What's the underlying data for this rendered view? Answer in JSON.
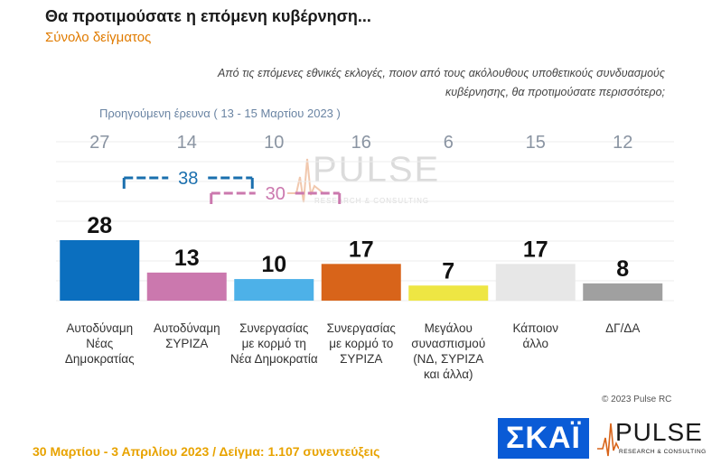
{
  "header": {
    "title": "Θα προτιμούσατε η επόμενη κυβέρνηση...",
    "subtitle": "Σύνολο δείγματος"
  },
  "question": {
    "line1": "Από τις επόμενες εθνικές εκλογές, ποιον από τους ακόλουθους υποθετικούς συνδυασμούς",
    "line2": "κυβέρνησης, θα προτιμούσατε περισσότερο;"
  },
  "previous_survey_label": "Προηγούμενη έρευνα  ( 13 - 15 Μαρτίου  2023 )",
  "chart_data": {
    "type": "bar",
    "categories": [
      [
        "Αυτοδύναμη",
        "Νέας",
        "Δημοκρατίας"
      ],
      [
        "Αυτοδύναμη",
        "ΣΥΡΙΖΑ"
      ],
      [
        "Συνεργασίας",
        "με κορμό τη",
        "Νέα Δημοκρατία"
      ],
      [
        "Συνεργασίας",
        "με κορμό το",
        "ΣΥΡΙΖΑ"
      ],
      [
        "Μεγάλου",
        "συνασπισμού",
        "(ΝΔ, ΣΥΡΙΖΑ",
        "και άλλα)"
      ],
      [
        "Κάποιον",
        "άλλο"
      ],
      [
        "ΔΓ/ΔΑ"
      ]
    ],
    "values": [
      28,
      13,
      10,
      17,
      7,
      17,
      8
    ],
    "previous_values": [
      27,
      14,
      10,
      16,
      6,
      15,
      12
    ],
    "colors": [
      "#0b6fbf",
      "#cb78ae",
      "#4db1e8",
      "#d8641a",
      "#eee643",
      "#e7e7e7",
      "#a0a0a0"
    ],
    "brackets": [
      {
        "label": "38",
        "from": 0,
        "to": 2,
        "color": "#1a6fae"
      },
      {
        "label": "30",
        "from": 1,
        "to": 3,
        "color": "#cb78ae"
      }
    ],
    "ylim": [
      0,
      30
    ],
    "grid": true
  },
  "watermark": {
    "name": "PULSE",
    "sub": "RESEARCH & CONSULTING"
  },
  "copyright": "© 2023 Pulse RC",
  "footer": "30 Μαρτίου - 3  Απριλίου  2023  /  Δείγμα:  1.107 συνεντεύξεις",
  "logos": {
    "skai": "ΣΚΑΪ",
    "pulse": "PULSE",
    "pulse_sub": "RESEARCH & CONSULTING"
  }
}
